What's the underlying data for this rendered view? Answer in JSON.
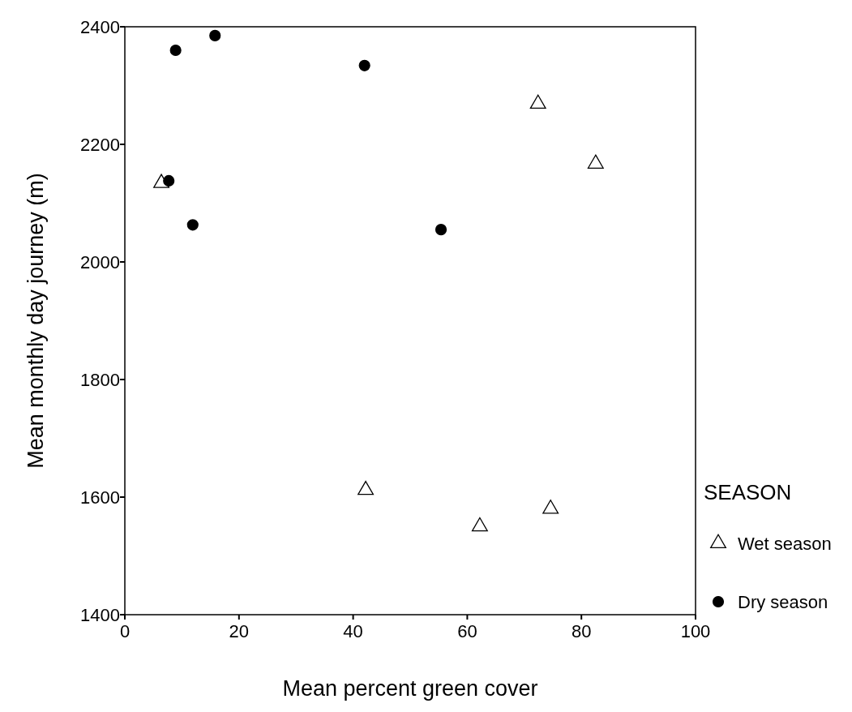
{
  "chart_data": {
    "type": "scatter",
    "xlabel": "Mean percent green cover",
    "ylabel": "Mean monthly day journey (m)",
    "legend_title": "SEASON",
    "legend": "right",
    "xlim": [
      0,
      100
    ],
    "ylim": [
      1400,
      2400
    ],
    "xticks": [
      0,
      20,
      40,
      60,
      80,
      100
    ],
    "yticks": [
      1400,
      1600,
      1800,
      2000,
      2200,
      2400
    ],
    "grid": false,
    "series": [
      {
        "name": "Wet season",
        "color": "#000000",
        "marker": "triangle",
        "x": [
          6.4,
          72.4,
          82.5,
          42.2,
          62.2,
          74.6
        ],
        "values": [
          2134,
          2269,
          2167,
          1612,
          1550,
          1580
        ]
      },
      {
        "name": "Dry season",
        "color": "#000000",
        "marker": "circle",
        "x": [
          8.9,
          15.8,
          42.0,
          7.7,
          11.9,
          55.4
        ],
        "values": [
          2360,
          2385,
          2334,
          2138,
          2063,
          2055
        ]
      }
    ]
  }
}
